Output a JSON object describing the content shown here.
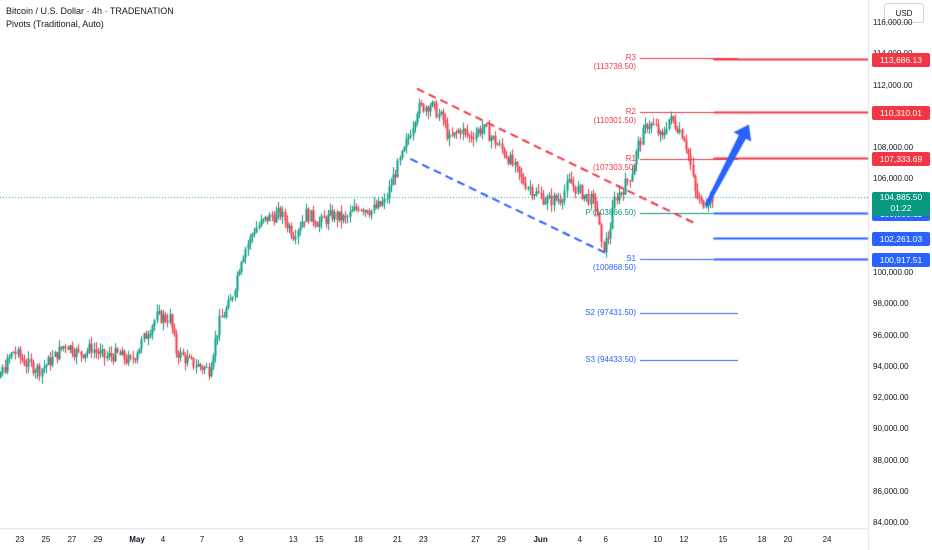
{
  "header": {
    "title": "Bitcoin / U.S. Dollar · 4h · TRADENATION",
    "indicator": "Pivots (Traditional, Auto)"
  },
  "currency": "USD",
  "chart_data": {
    "type": "candlestick",
    "yaxis": {
      "ticks": [
        84000,
        86000,
        88000,
        90000,
        92000,
        94000,
        96000,
        98000,
        100000,
        102000,
        104000,
        106000,
        108000,
        110000,
        112000,
        114000,
        116000
      ],
      "tick_labels": [
        "84,000.00",
        "86,000.00",
        "88,000.00",
        "90,000.00",
        "92,000.00",
        "94,000.00",
        "96,000.00",
        "98,000.00",
        "100,000.00",
        "102,000.00",
        "104,000.00",
        "106,000.00",
        "108,000.00",
        "110,000.00",
        "112,000.00",
        "114,000.00",
        "116,000.00"
      ]
    },
    "xaxis": {
      "labels": [
        "23",
        "25",
        "27",
        "29",
        "May",
        "4",
        "7",
        "9",
        "13",
        "15",
        "18",
        "21",
        "23",
        "27",
        "29",
        "Jun",
        "4",
        "6",
        "10",
        "12",
        "15",
        "18",
        "20",
        "24"
      ],
      "label_days": [
        -9,
        -7,
        -5,
        -3,
        0,
        2,
        5,
        8,
        12,
        14,
        17,
        20,
        22,
        26,
        28,
        31,
        34,
        36,
        40,
        42,
        45,
        48,
        50,
        53
      ]
    },
    "pivots": [
      {
        "name": "R3",
        "label": "R3 (113738.50)",
        "value": 113738.5,
        "color": "#f23645"
      },
      {
        "name": "R2",
        "label": "R2 (110301.50)",
        "value": 110301.5,
        "color": "#f23645"
      },
      {
        "name": "R1",
        "label": "R1 (107303.50)",
        "value": 107303.5,
        "color": "#f23645"
      },
      {
        "name": "P",
        "label": "P (103866.50)",
        "value": 103866.5,
        "color": "#089981"
      },
      {
        "name": "S1",
        "label": "S1 (100868.50)",
        "value": 100868.5,
        "color": "#2962ff"
      },
      {
        "name": "S2",
        "label": "S2 (97431.50)",
        "value": 97431.5,
        "color": "#2962ff"
      },
      {
        "name": "S3",
        "label": "S3 (94433.50)",
        "value": 94433.5,
        "color": "#2962ff"
      }
    ],
    "levels": [
      {
        "value": 113686.13,
        "label": "113,686.13",
        "color": "#f23645"
      },
      {
        "value": 110310.01,
        "label": "110,310.01",
        "color": "#f23645"
      },
      {
        "value": 107333.69,
        "label": "107,333.69",
        "color": "#f23645"
      },
      {
        "value": 103808.11,
        "label": "103,808.11",
        "color": "#2962ff"
      },
      {
        "value": 102261.03,
        "label": "102,261.03",
        "color": "#2962ff"
      },
      {
        "value": 100917.51,
        "label": "100,917.51",
        "color": "#2962ff"
      }
    ],
    "current_price": {
      "value": 104885.5,
      "label": "104,885.50",
      "countdown": "01:22",
      "color": "#089981"
    },
    "channel": {
      "upper": {
        "from": [
          21.5,
          111800
        ],
        "to": [
          42.8,
          103200
        ],
        "color": "#f23645"
      },
      "lower": {
        "from": [
          21.0,
          107300
        ],
        "to": [
          36.2,
          101200
        ],
        "color": "#2962ff"
      }
    },
    "projection_arrow": {
      "from": [
        42.8,
        103800
      ],
      "to": [
        47.0,
        109500
      ],
      "color": "#2962ff"
    },
    "ohlc_path": [
      [
        -12.5,
        87000
      ],
      [
        -11.5,
        90000
      ],
      [
        -10.5,
        93500
      ],
      [
        -9.5,
        95000
      ],
      [
        -8.5,
        94200
      ],
      [
        -7.5,
        93800
      ],
      [
        -6.5,
        94500
      ],
      [
        -5.5,
        95500
      ],
      [
        -4.5,
        94800
      ],
      [
        -3.5,
        95200
      ],
      [
        -2.5,
        94600
      ],
      [
        -1.5,
        94800
      ],
      [
        -0.5,
        94300
      ],
      [
        0.5,
        95800
      ],
      [
        1.5,
        97200
      ],
      [
        2.5,
        97100
      ],
      [
        3.0,
        95000
      ],
      [
        4.0,
        94300
      ],
      [
        5.5,
        93800
      ],
      [
        6.3,
        96800
      ],
      [
        7.2,
        98200
      ],
      [
        8.0,
        101000
      ],
      [
        9.0,
        102800
      ],
      [
        10.0,
        103500
      ],
      [
        11.0,
        103800
      ],
      [
        12.0,
        102500
      ],
      [
        13.0,
        103800
      ],
      [
        14.0,
        103200
      ],
      [
        15.0,
        103700
      ],
      [
        16.0,
        103400
      ],
      [
        17.0,
        104300
      ],
      [
        18.0,
        104000
      ],
      [
        19.0,
        104500
      ],
      [
        19.7,
        106200
      ],
      [
        20.5,
        107800
      ],
      [
        21.5,
        110500
      ],
      [
        22.5,
        110800
      ],
      [
        23.5,
        109800
      ],
      [
        24.0,
        108500
      ],
      [
        24.8,
        109200
      ],
      [
        25.5,
        108700
      ],
      [
        26.5,
        109300
      ],
      [
        27.5,
        108400
      ],
      [
        28.5,
        107400
      ],
      [
        29.5,
        106000
      ],
      [
        30.5,
        105200
      ],
      [
        31.5,
        104600
      ],
      [
        32.5,
        104800
      ],
      [
        33.2,
        105800
      ],
      [
        34.0,
        105200
      ],
      [
        34.8,
        104700
      ],
      [
        35.3,
        104200
      ],
      [
        35.7,
        101400
      ],
      [
        36.2,
        102400
      ],
      [
        36.7,
        104800
      ],
      [
        37.4,
        105500
      ],
      [
        38.0,
        106500
      ],
      [
        38.5,
        108200
      ],
      [
        39.2,
        109600
      ],
      [
        39.8,
        109300
      ],
      [
        40.3,
        108500
      ],
      [
        40.8,
        109900
      ],
      [
        41.5,
        109400
      ],
      [
        42.0,
        108700
      ],
      [
        42.4,
        107400
      ],
      [
        42.8,
        105200
      ],
      [
        43.3,
        104400
      ],
      [
        43.7,
        104700
      ],
      [
        44.2,
        104885.5
      ]
    ]
  }
}
